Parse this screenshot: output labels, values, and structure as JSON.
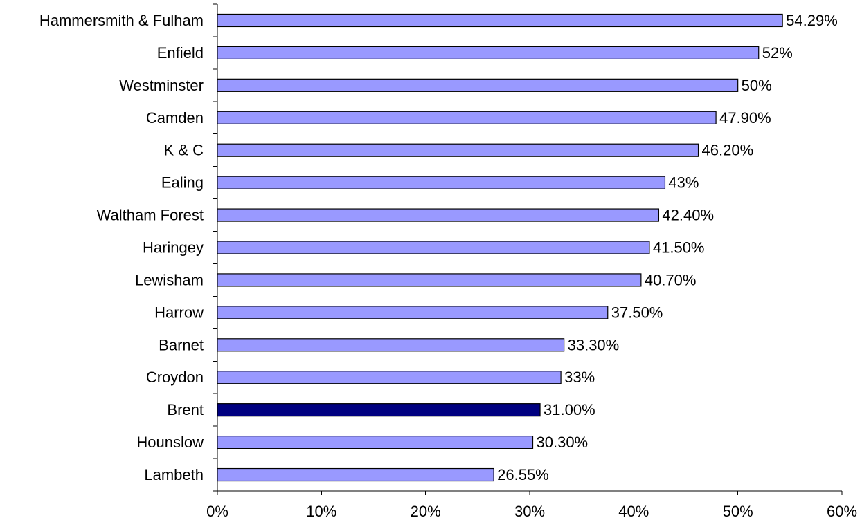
{
  "chart_data": {
    "type": "bar",
    "orientation": "horizontal",
    "title": "",
    "xlabel": "",
    "ylabel": "",
    "categories": [
      "Hammersmith & Fulham",
      "Enfield",
      "Westminster",
      "Camden",
      "K & C",
      "Ealing",
      "Waltham Forest",
      "Haringey",
      "Lewisham",
      "Harrow",
      "Barnet",
      "Croydon",
      "Brent",
      "Hounslow",
      "Lambeth"
    ],
    "values": [
      54.29,
      52,
      50,
      47.9,
      46.2,
      43,
      42.4,
      41.5,
      40.7,
      37.5,
      33.3,
      33,
      31,
      30.3,
      26.55
    ],
    "data_labels": [
      "54.29%",
      "52%",
      "50%",
      "47.90%",
      "46.20%",
      "43%",
      "42.40%",
      "41.50%",
      "40.70%",
      "37.50%",
      "33.30%",
      "33%",
      "31.00%",
      "30.30%",
      "26.55%"
    ],
    "xlim": [
      0,
      60
    ],
    "x_ticks": [
      0,
      10,
      20,
      30,
      40,
      50,
      60
    ],
    "x_tick_labels": [
      "0%",
      "10%",
      "20%",
      "30%",
      "40%",
      "50%",
      "60%"
    ],
    "grid": false,
    "legend": "none",
    "colors": {
      "default_bar": "#9999ff",
      "highlight_bar": "#000080",
      "bar_outline": "#000000"
    },
    "highlighted_category": "Brent"
  }
}
